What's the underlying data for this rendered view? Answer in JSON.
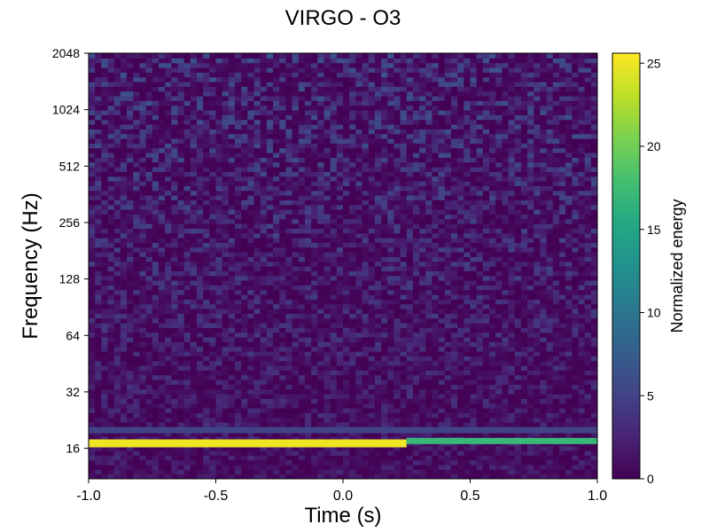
{
  "chart_data": {
    "type": "heatmap",
    "title": "VIRGO - O3",
    "xlabel": "Time (s)",
    "ylabel": "Frequency (Hz)",
    "xlim": [
      -1.0,
      1.0
    ],
    "ylim": [
      11,
      2048
    ],
    "yscale": "log2",
    "x_ticks": [
      "-1.0",
      "-0.5",
      "0.0",
      "0.5",
      "1.0"
    ],
    "x_tick_values": [
      -1.0,
      -0.5,
      0.0,
      0.5,
      1.0
    ],
    "y_ticks": [
      "16",
      "32",
      "64",
      "128",
      "256",
      "512",
      "1024",
      "2048"
    ],
    "y_tick_values": [
      16,
      32,
      64,
      128,
      256,
      512,
      1024,
      2048
    ],
    "colormap": "viridis",
    "colorbar": {
      "label": "Normalized energy",
      "range": [
        0,
        25.6
      ],
      "ticks": [
        "0",
        "5",
        "10",
        "15",
        "20",
        "25"
      ],
      "tick_values": [
        0,
        5,
        10,
        15,
        20,
        25
      ]
    },
    "features": [
      {
        "description": "strong narrow band",
        "frequency_hz": 17,
        "time_range": [
          -1.0,
          0.25
        ],
        "energy": 25
      },
      {
        "description": "band continuation",
        "frequency_hz": 17.5,
        "time_range": [
          0.25,
          1.0
        ],
        "energy": 17
      },
      {
        "description": "weaker band",
        "frequency_hz": 20,
        "time_range": [
          -1.0,
          1.0
        ],
        "energy": 5
      },
      {
        "description": "background noise",
        "frequency_range": [
          11,
          2048
        ],
        "energy_typical": 1.5
      }
    ]
  }
}
